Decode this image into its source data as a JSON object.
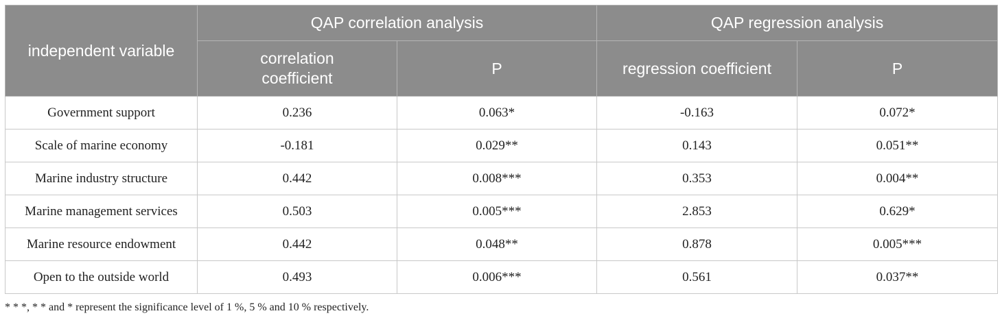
{
  "table": {
    "header": {
      "independent_variable": "independent variable",
      "group_correlation": "QAP correlation analysis",
      "group_regression": "QAP regression analysis",
      "correlation_coefficient": "correlation coefficient",
      "p_correlation": "P",
      "regression_coefficient": "regression coefficient",
      "p_regression": "P"
    },
    "rows": [
      {
        "variable": "Government support",
        "correlation": "0.236",
        "p_corr": "0.063*",
        "regression": "-0.163",
        "p_reg": "0.072*"
      },
      {
        "variable": "Scale of marine economy",
        "correlation": "-0.181",
        "p_corr": "0.029**",
        "regression": "0.143",
        "p_reg": "0.051**"
      },
      {
        "variable": "Marine industry structure",
        "correlation": "0.442",
        "p_corr": "0.008***",
        "regression": "0.353",
        "p_reg": "0.004**"
      },
      {
        "variable": "Marine management services",
        "correlation": "0.503",
        "p_corr": "0.005***",
        "regression": "2.853",
        "p_reg": "0.629*"
      },
      {
        "variable": "Marine resource endowment",
        "correlation": "0.442",
        "p_corr": "0.048**",
        "regression": "0.878",
        "p_reg": "0.005***"
      },
      {
        "variable": "Open to the outside world",
        "correlation": "0.493",
        "p_corr": "0.006***",
        "regression": "0.561",
        "p_reg": "0.037**"
      }
    ]
  },
  "footnote": "* * *, * * and * represent the significance level of 1 %, 5 % and 10 % respectively."
}
